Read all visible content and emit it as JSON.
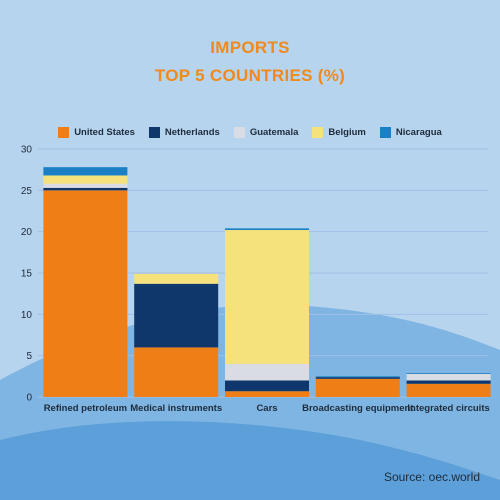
{
  "title_lines": [
    "IMPORTS",
    "TOP 5 COUNTRIES (%)"
  ],
  "source_text": "Source: oec.world",
  "colors": {
    "background": "#b7d4ef",
    "wave": "#7fb5e2",
    "wave_front": "#5d9fd8",
    "title": "#f08a1c",
    "text": "#1d2b3a",
    "grid": "#9fc1e6"
  },
  "chart_data": {
    "type": "bar",
    "stacked": true,
    "title": "IMPORTS TOP 5 COUNTRIES (%)",
    "xlabel": "",
    "ylabel": "",
    "ylim": [
      0,
      30
    ],
    "yticks": [
      0,
      5,
      10,
      15,
      20,
      25,
      30
    ],
    "grid": true,
    "legend_position": "top",
    "categories": [
      "Refined petroleum",
      "Medical instruments",
      "Cars",
      "Broadcasting equipment",
      "Integrated circuits"
    ],
    "series": [
      {
        "name": "United States",
        "color": "#f07e16",
        "values": [
          25.0,
          6.0,
          0.7,
          2.2,
          1.6
        ]
      },
      {
        "name": "Netherlands",
        "color": "#10376b",
        "values": [
          0.3,
          7.7,
          1.3,
          0.2,
          0.4
        ]
      },
      {
        "name": "Guatemala",
        "color": "#d9dde3",
        "values": [
          0.5,
          0.0,
          2.0,
          0.0,
          0.8
        ]
      },
      {
        "name": "Belgium",
        "color": "#f6e27c",
        "values": [
          1.0,
          1.2,
          16.2,
          0.0,
          0.0
        ]
      },
      {
        "name": "Nicaragua",
        "color": "#1a7fc4",
        "values": [
          1.0,
          0.0,
          0.2,
          0.1,
          0.1
        ]
      }
    ]
  }
}
